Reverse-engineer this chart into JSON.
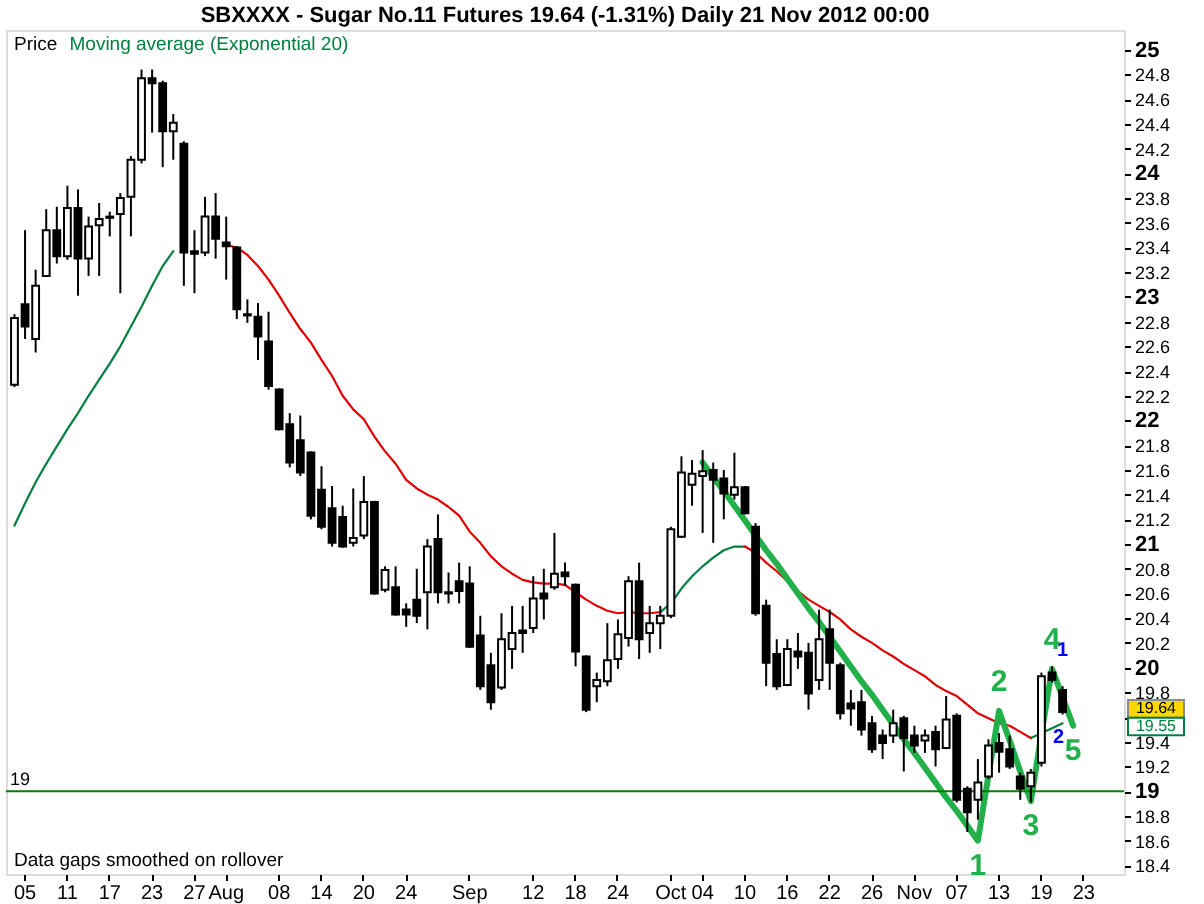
{
  "chart_data": {
    "type": "candlestick",
    "title": "SBXXXX - Sugar No.11 Futures    19.64 (-1.31%)    Daily  21 Nov 2012 00:00",
    "color": "#000000",
    "categories": [
      null,
      "05",
      null,
      null,
      null,
      "11",
      null,
      null,
      null,
      "17",
      null,
      null,
      null,
      "23",
      null,
      null,
      null,
      "27",
      null,
      null,
      "Aug",
      null,
      null,
      null,
      null,
      "08",
      null,
      null,
      null,
      "14",
      null,
      null,
      null,
      "20",
      null,
      null,
      null,
      "24",
      null,
      null,
      null,
      null,
      null,
      "Sep",
      null,
      null,
      null,
      null,
      null,
      "12",
      null,
      null,
      null,
      "18",
      null,
      null,
      null,
      "24",
      null,
      null,
      null,
      null,
      "Oct",
      null,
      null,
      "04",
      null,
      null,
      null,
      "10",
      null,
      null,
      null,
      "16",
      null,
      null,
      null,
      "22",
      null,
      null,
      null,
      "26",
      null,
      null,
      null,
      "Nov",
      null,
      null,
      null,
      "07",
      null,
      null,
      null,
      "13",
      null,
      null,
      null,
      "19",
      null,
      null,
      null,
      "23",
      null,
      null,
      null
    ],
    "ohlc": [
      [
        22.29,
        22.86,
        22.27,
        22.83
      ],
      [
        22.94,
        23.54,
        22.66,
        22.76
      ],
      [
        22.66,
        23.22,
        22.55,
        23.09
      ],
      [
        23.17,
        23.71,
        23.17,
        23.54
      ],
      [
        23.54,
        23.73,
        23.27,
        23.33
      ],
      [
        23.33,
        23.9,
        23.3,
        23.72
      ],
      [
        23.72,
        23.87,
        23.01,
        23.31
      ],
      [
        23.31,
        23.65,
        23.17,
        23.57
      ],
      [
        23.58,
        23.76,
        23.17,
        23.63
      ],
      [
        23.65,
        23.69,
        23.49,
        23.64
      ],
      [
        23.67,
        23.84,
        23.03,
        23.8
      ],
      [
        23.81,
        24.14,
        23.49,
        24.11
      ],
      [
        24.11,
        24.84,
        24.08,
        24.77
      ],
      [
        24.77,
        24.84,
        24.33,
        24.73
      ],
      [
        24.73,
        24.75,
        24.05,
        24.34
      ],
      [
        24.34,
        24.48,
        24.11,
        24.41
      ],
      [
        24.24,
        24.26,
        23.09,
        23.36
      ],
      [
        23.37,
        23.54,
        23.03,
        23.35
      ],
      [
        23.36,
        23.81,
        23.33,
        23.65
      ],
      [
        23.65,
        23.84,
        23.31,
        23.47
      ],
      [
        23.44,
        23.65,
        23.14,
        23.41
      ],
      [
        23.4,
        23.41,
        22.82,
        22.9
      ],
      [
        22.86,
        22.98,
        22.79,
        22.85
      ],
      [
        22.84,
        22.95,
        22.49,
        22.68
      ],
      [
        22.64,
        22.88,
        22.25,
        22.28
      ],
      [
        22.25,
        22.26,
        21.92,
        21.93
      ],
      [
        21.97,
        22.06,
        21.62,
        21.66
      ],
      [
        21.84,
        22.04,
        21.55,
        21.58
      ],
      [
        21.74,
        21.75,
        21.2,
        21.23
      ],
      [
        21.44,
        21.63,
        21.12,
        21.14
      ],
      [
        21.29,
        21.47,
        20.98,
        21.01
      ],
      [
        21.22,
        21.31,
        20.97,
        20.98
      ],
      [
        21.01,
        21.45,
        20.98,
        21.05
      ],
      [
        21.07,
        21.55,
        21.04,
        21.34
      ],
      [
        21.34,
        21.35,
        20.59,
        20.6
      ],
      [
        20.63,
        20.82,
        20.61,
        20.79
      ],
      [
        20.65,
        20.82,
        20.42,
        20.43
      ],
      [
        20.47,
        20.52,
        20.33,
        20.43
      ],
      [
        20.55,
        20.8,
        20.36,
        20.42
      ],
      [
        20.61,
        21.04,
        20.31,
        20.98
      ],
      [
        21.04,
        21.24,
        20.52,
        20.61
      ],
      [
        20.61,
        20.77,
        20.52,
        20.6
      ],
      [
        20.7,
        20.85,
        20.52,
        20.62
      ],
      [
        20.68,
        20.82,
        20.16,
        20.17
      ],
      [
        20.26,
        20.42,
        19.82,
        19.85
      ],
      [
        20.02,
        20.12,
        19.66,
        19.72
      ],
      [
        19.84,
        20.44,
        19.82,
        20.23
      ],
      [
        20.15,
        20.5,
        19.99,
        20.28
      ],
      [
        20.3,
        20.5,
        20.12,
        20.28
      ],
      [
        20.32,
        20.74,
        20.28,
        20.56
      ],
      [
        20.6,
        20.8,
        20.39,
        20.56
      ],
      [
        20.65,
        21.09,
        20.63,
        20.76
      ],
      [
        20.77,
        20.85,
        20.66,
        20.74
      ],
      [
        20.67,
        20.68,
        20.01,
        20.13
      ],
      [
        20.09,
        20.1,
        19.64,
        19.66
      ],
      [
        19.85,
        19.96,
        19.72,
        19.9
      ],
      [
        19.89,
        20.36,
        19.85,
        20.06
      ],
      [
        20.07,
        20.39,
        19.99,
        20.27
      ],
      [
        20.24,
        20.74,
        20.17,
        20.7
      ],
      [
        20.7,
        20.85,
        20.07,
        20.23
      ],
      [
        20.28,
        20.5,
        20.12,
        20.36
      ],
      [
        20.36,
        20.5,
        20.15,
        20.42
      ],
      [
        20.42,
        21.14,
        20.4,
        21.12
      ],
      [
        21.06,
        21.71,
        21.05,
        21.58
      ],
      [
        21.48,
        21.68,
        21.31,
        21.57
      ],
      [
        21.55,
        21.76,
        21.09,
        21.59
      ],
      [
        21.6,
        21.66,
        21.01,
        21.52
      ],
      [
        21.53,
        21.6,
        21.2,
        21.41
      ],
      [
        21.4,
        21.74,
        21.36,
        21.46
      ],
      [
        21.46,
        21.47,
        21.24,
        21.25
      ],
      [
        21.14,
        21.17,
        20.42,
        20.44
      ],
      [
        20.5,
        20.55,
        19.85,
        20.04
      ],
      [
        20.11,
        20.23,
        19.82,
        19.85
      ],
      [
        19.86,
        20.23,
        19.85,
        20.15
      ],
      [
        20.13,
        20.28,
        19.99,
        20.09
      ],
      [
        20.12,
        20.2,
        19.66,
        19.79
      ],
      [
        19.9,
        20.47,
        19.82,
        20.23
      ],
      [
        20.31,
        20.47,
        19.82,
        20.04
      ],
      [
        20.02,
        20.04,
        19.58,
        19.63
      ],
      [
        19.71,
        19.82,
        19.53,
        19.67
      ],
      [
        19.72,
        19.82,
        19.45,
        19.5
      ],
      [
        19.55,
        19.61,
        19.31,
        19.34
      ],
      [
        19.45,
        19.5,
        19.26,
        19.39
      ],
      [
        19.45,
        19.66,
        19.39,
        19.55
      ],
      [
        19.59,
        19.61,
        19.16,
        19.43
      ],
      [
        19.45,
        19.53,
        19.31,
        19.37
      ],
      [
        19.41,
        19.5,
        19.31,
        19.45
      ],
      [
        19.48,
        19.53,
        19.2,
        19.34
      ],
      [
        19.35,
        19.77,
        19.34,
        19.58
      ],
      [
        19.61,
        19.63,
        18.91,
        18.93
      ],
      [
        19.02,
        19.04,
        18.67,
        18.83
      ],
      [
        18.93,
        19.26,
        18.77,
        19.07
      ],
      [
        19.12,
        19.42,
        19.1,
        19.37
      ],
      [
        19.39,
        19.47,
        19.15,
        19.32
      ],
      [
        19.34,
        19.45,
        19.18,
        19.2
      ],
      [
        19.12,
        19.15,
        18.93,
        19.02
      ],
      [
        19.04,
        19.18,
        18.91,
        19.15
      ],
      [
        19.23,
        19.96,
        19.2,
        19.93
      ],
      [
        19.96,
        20.01,
        19.88,
        19.9
      ],
      [
        19.82,
        19.85,
        19.62,
        19.64
      ],
      null,
      null,
      null,
      null,
      null
    ],
    "value_labels": [
      null,
      null,
      null,
      null,
      null,
      null,
      null,
      null,
      null,
      null,
      null,
      null,
      null,
      null,
      null,
      null,
      null,
      null,
      null,
      null,
      null,
      null,
      null,
      null,
      null,
      null,
      null,
      null,
      null,
      null,
      null,
      null,
      null,
      null,
      null,
      null,
      null,
      null,
      null,
      null,
      null,
      null,
      null,
      null,
      null,
      null,
      null,
      null,
      null,
      null,
      null,
      null,
      null,
      null,
      null,
      null,
      null,
      null,
      null,
      null,
      null,
      null,
      null,
      null,
      null,
      null,
      null,
      null,
      null,
      null,
      null,
      null,
      null,
      null,
      null,
      null,
      null,
      null,
      null,
      null,
      null,
      null,
      null,
      null,
      null,
      null,
      null,
      null,
      null,
      null,
      null,
      null,
      null,
      null,
      null,
      null,
      null,
      null,
      null,
      "19.64",
      null,
      null,
      null,
      null,
      null
    ],
    "series": [
      {
        "name": "Moving average (Exponential 20)",
        "type": "line",
        "color": "#008040",
        "values": [
          21.15,
          21.33,
          21.5,
          21.65,
          21.79,
          21.93,
          22.06,
          22.2,
          22.33,
          22.46,
          22.6,
          22.76,
          22.92,
          23.09,
          23.25,
          23.37,
          null,
          null,
          null,
          null,
          null,
          null,
          null,
          null,
          null,
          null,
          null,
          null,
          null,
          null,
          null,
          null,
          null,
          null,
          null,
          null,
          null,
          null,
          null,
          null,
          null,
          null,
          null,
          null,
          null,
          null,
          null,
          null,
          null,
          null,
          null,
          null,
          null,
          null,
          null,
          null,
          null,
          null,
          null,
          null,
          null,
          20.45,
          20.52,
          20.64,
          20.74,
          20.82,
          20.89,
          20.95,
          20.98,
          20.98,
          null,
          null,
          null,
          null,
          null,
          null,
          null,
          null,
          null,
          null,
          null,
          null,
          null,
          null,
          null,
          null,
          null,
          null,
          null,
          null,
          null,
          null,
          null,
          null,
          null,
          null,
          19.43,
          19.47,
          19.51,
          19.55,
          null,
          null,
          null,
          null,
          null
        ]
      },
      {
        "type": "line",
        "color": "#e00000",
        "values": [
          null,
          null,
          null,
          null,
          null,
          null,
          null,
          null,
          null,
          null,
          null,
          null,
          null,
          null,
          null,
          null,
          null,
          null,
          null,
          null,
          23.42,
          23.4,
          23.34,
          23.25,
          23.14,
          23.01,
          22.87,
          22.74,
          22.63,
          22.49,
          22.36,
          22.2,
          22.09,
          22.01,
          21.87,
          21.75,
          21.65,
          21.52,
          21.45,
          21.4,
          21.36,
          21.3,
          21.23,
          21.1,
          21.01,
          20.9,
          20.82,
          20.76,
          20.71,
          20.69,
          20.68,
          20.68,
          20.67,
          20.61,
          20.55,
          20.5,
          20.46,
          20.44,
          20.45,
          20.44,
          20.44,
          20.45,
          null,
          null,
          null,
          null,
          null,
          null,
          null,
          20.98,
          20.93,
          20.85,
          20.78,
          20.7,
          20.62,
          20.55,
          20.5,
          20.45,
          20.39,
          20.31,
          20.25,
          20.2,
          20.14,
          20.09,
          20.03,
          19.98,
          19.93,
          19.86,
          19.81,
          19.77,
          19.7,
          19.63,
          19.59,
          19.55,
          19.53,
          19.48,
          19.43,
          null,
          null,
          null,
          null,
          null,
          null,
          null,
          null
        ]
      },
      {
        "type": "line",
        "color": "#22b04a",
        "values": [
          null,
          null,
          null,
          null,
          null,
          null,
          null,
          null,
          null,
          null,
          null,
          null,
          null,
          null,
          null,
          null,
          null,
          null,
          null,
          null,
          null,
          null,
          null,
          null,
          null,
          null,
          null,
          null,
          null,
          null,
          null,
          null,
          null,
          null,
          null,
          null,
          null,
          null,
          null,
          null,
          null,
          null,
          null,
          null,
          null,
          null,
          null,
          null,
          null,
          null,
          null,
          null,
          null,
          null,
          null,
          null,
          null,
          null,
          null,
          null,
          null,
          null,
          null,
          null,
          null,
          21.66,
          21.54,
          21.43,
          21.31,
          21.19,
          21.07,
          20.95,
          20.84,
          20.72,
          20.6,
          20.48,
          20.37,
          20.25,
          20.13,
          20.01,
          19.89,
          19.78,
          19.66,
          19.54,
          19.42,
          19.31,
          19.19,
          19.07,
          18.95,
          18.84,
          18.72,
          18.6,
          19.13,
          19.65,
          19.41,
          19.16,
          18.92,
          19.46,
          19.99,
          19.76,
          19.53,
          null,
          null,
          null,
          null
        ]
      }
    ],
    "ylim": [
      18.33,
      25.16
    ],
    "yticks": [
      18.4,
      18.6,
      18.8,
      19,
      19.2,
      19.4,
      {
        "value": 19.6,
        "label": null
      },
      19.8,
      20,
      20.2,
      20.4,
      20.6,
      20.8,
      21,
      21.2,
      21.4,
      21.6,
      21.8,
      22,
      22.2,
      22.4,
      22.6,
      22.8,
      23,
      23.2,
      23.4,
      23.6,
      23.8,
      24,
      24.2,
      24.4,
      24.6,
      24.8,
      25
    ],
    "ref_lines": [
      {
        "axis": "y",
        "value": 19,
        "label": "19",
        "color": "#008000"
      }
    ],
    "legend": "top left",
    "legend_title": "Price",
    "annotations": [
      "Data gaps smoothed on rollover",
      "19.55",
      "1",
      "2",
      {
        "text": "1",
        "y": 18.6
      },
      {
        "text": "2",
        "y": 19.65
      },
      {
        "text": "3",
        "y": 18.92
      },
      {
        "text": "4",
        "y": 19.99
      },
      {
        "text": "5",
        "y": 19.53
      }
    ]
  }
}
